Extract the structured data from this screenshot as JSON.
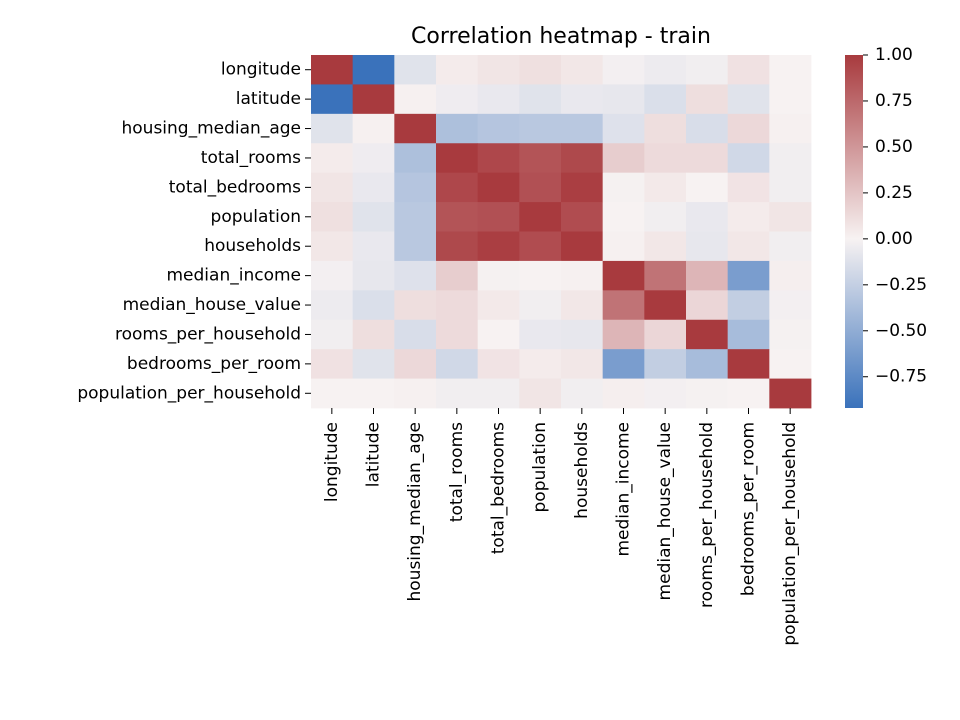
{
  "chart_data": {
    "type": "heatmap",
    "title": "Correlation heatmap - train",
    "xlabel": "",
    "ylabel": "",
    "variables": [
      "longitude",
      "latitude",
      "housing_median_age",
      "total_rooms",
      "total_bedrooms",
      "population",
      "households",
      "median_income",
      "median_house_value",
      "rooms_per_household",
      "bedrooms_per_room",
      "population_per_household"
    ],
    "matrix": [
      [
        1.0,
        -0.92,
        -0.11,
        0.04,
        0.07,
        0.1,
        0.06,
        -0.02,
        -0.05,
        -0.03,
        0.09,
        0.0
      ],
      [
        -0.92,
        1.0,
        0.01,
        -0.04,
        -0.07,
        -0.11,
        -0.07,
        -0.08,
        -0.14,
        0.11,
        -0.11,
        0.0
      ],
      [
        -0.11,
        0.01,
        1.0,
        -0.36,
        -0.32,
        -0.3,
        -0.3,
        -0.12,
        0.11,
        -0.15,
        0.14,
        0.01
      ],
      [
        0.04,
        -0.04,
        -0.36,
        1.0,
        0.93,
        0.86,
        0.92,
        0.2,
        0.13,
        0.13,
        -0.19,
        -0.03
      ],
      [
        0.07,
        -0.07,
        -0.32,
        0.93,
        1.0,
        0.88,
        0.98,
        -0.01,
        0.05,
        0.0,
        0.08,
        -0.03
      ],
      [
        0.1,
        -0.11,
        -0.3,
        0.86,
        0.88,
        1.0,
        0.9,
        0.0,
        -0.03,
        -0.07,
        0.04,
        0.07
      ],
      [
        0.06,
        -0.07,
        -0.3,
        0.92,
        0.98,
        0.9,
        1.0,
        0.01,
        0.06,
        -0.08,
        0.06,
        -0.03
      ],
      [
        -0.02,
        -0.08,
        -0.12,
        0.2,
        -0.01,
        0.0,
        0.01,
        1.0,
        0.69,
        0.33,
        -0.61,
        0.02
      ],
      [
        -0.05,
        -0.14,
        0.11,
        0.13,
        0.05,
        -0.03,
        0.06,
        0.69,
        1.0,
        0.15,
        -0.26,
        -0.02
      ],
      [
        -0.03,
        0.11,
        -0.15,
        0.13,
        0.0,
        -0.07,
        -0.08,
        0.33,
        0.15,
        1.0,
        -0.39,
        -0.01
      ],
      [
        0.09,
        -0.11,
        0.14,
        -0.19,
        0.08,
        0.04,
        0.06,
        -0.61,
        -0.26,
        -0.39,
        1.0,
        0.0
      ],
      [
        0.0,
        0.0,
        0.01,
        -0.03,
        -0.03,
        0.07,
        -0.03,
        0.02,
        -0.02,
        -0.01,
        0.0,
        1.0
      ]
    ],
    "colorbar": {
      "vmin": -0.92,
      "vmax": 1.0,
      "ticks": [
        1.0,
        0.75,
        0.5,
        0.25,
        0.0,
        -0.25,
        -0.5,
        -0.75
      ],
      "tick_labels": [
        "1.00",
        "0.75",
        "0.50",
        "0.25",
        "0.00",
        "−0.25",
        "−0.50",
        "−0.75"
      ],
      "colors": {
        "low": "#3a72bb",
        "mid": "#f7f2f2",
        "high": "#a83a3e"
      }
    }
  }
}
